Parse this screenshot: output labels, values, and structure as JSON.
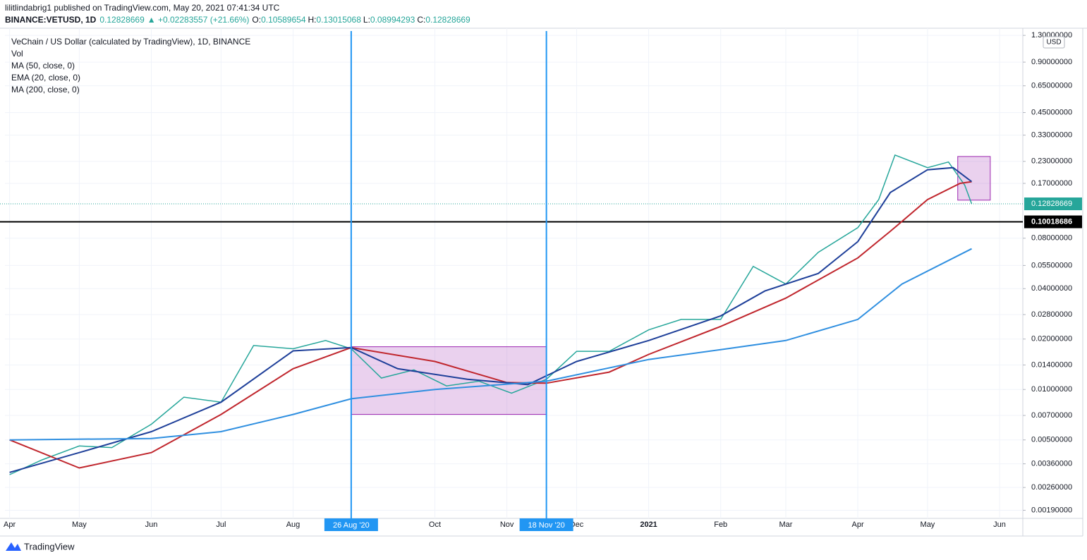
{
  "header": {
    "published": "lilitlindabrig1 published on TradingView.com, May 20, 2021 07:41:34 UTC",
    "symbol": "BINANCE:VETUSD, 1D",
    "last": "0.12828669",
    "change": "▲ +0.02283557 (+21.66%)",
    "open_label": "O:",
    "open": "0.10589654",
    "high_label": "H:",
    "high": "0.13015068",
    "low_label": "L:",
    "low": "0.08994293",
    "close_label": "C:",
    "close": "0.12828669"
  },
  "legend": {
    "vol": "Vol"
  },
  "currency": "USD",
  "footer": "TradingView",
  "chart_data": {
    "type": "line",
    "log_scale": true,
    "grid": true,
    "xlim": [
      "2020-03-30",
      "2021-06-11"
    ],
    "ylim": [
      0.0017,
      1.38
    ],
    "yticks": [
      {
        "value": 1.3,
        "label": "1.30000000"
      },
      {
        "value": 0.9,
        "label": "0.90000000"
      },
      {
        "value": 0.65,
        "label": "0.65000000"
      },
      {
        "value": 0.45,
        "label": "0.45000000"
      },
      {
        "value": 0.33,
        "label": "0.33000000"
      },
      {
        "value": 0.23,
        "label": "0.23000000"
      },
      {
        "value": 0.17,
        "label": "0.17000000"
      },
      {
        "value": 0.08,
        "label": "0.08000000"
      },
      {
        "value": 0.055,
        "label": "0.05500000"
      },
      {
        "value": 0.04,
        "label": "0.04000000"
      },
      {
        "value": 0.028,
        "label": "0.02800000"
      },
      {
        "value": 0.02,
        "label": "0.02000000"
      },
      {
        "value": 0.014,
        "label": "0.01400000"
      },
      {
        "value": 0.01,
        "label": "0.01000000"
      },
      {
        "value": 0.007,
        "label": "0.00700000"
      },
      {
        "value": 0.005,
        "label": "0.00500000"
      },
      {
        "value": 0.0036,
        "label": "0.00360000"
      },
      {
        "value": 0.0026,
        "label": "0.00260000"
      },
      {
        "value": 0.0019,
        "label": "0.00190000"
      }
    ],
    "xticks": [
      {
        "value": "2020-04-01",
        "label": "Apr"
      },
      {
        "value": "2020-05-01",
        "label": "May"
      },
      {
        "value": "2020-06-01",
        "label": "Jun"
      },
      {
        "value": "2020-07-01",
        "label": "Jul"
      },
      {
        "value": "2020-08-01",
        "label": "Aug"
      },
      {
        "value": "2020-10-01",
        "label": "Oct"
      },
      {
        "value": "2020-11-01",
        "label": "Nov"
      },
      {
        "value": "2020-12-01",
        "label": "Dec"
      },
      {
        "value": "2021-01-01",
        "label": "2021"
      },
      {
        "value": "2021-02-01",
        "label": "Feb"
      },
      {
        "value": "2021-03-01",
        "label": "Mar"
      },
      {
        "value": "2021-04-01",
        "label": "Apr"
      },
      {
        "value": "2021-05-01",
        "label": "May"
      },
      {
        "value": "2021-06-01",
        "label": "Jun"
      }
    ],
    "series": [
      {
        "name": "VeChain / US Dollar (calculated by TradingView), 1D, BINANCE",
        "color": "#26a69a",
        "x": [
          "2020-04-01",
          "2020-04-15",
          "2020-05-01",
          "2020-05-15",
          "2020-06-01",
          "2020-06-15",
          "2020-07-01",
          "2020-07-15",
          "2020-08-01",
          "2020-08-15",
          "2020-08-26",
          "2020-09-08",
          "2020-09-22",
          "2020-10-06",
          "2020-10-20",
          "2020-11-03",
          "2020-11-18",
          "2020-12-01",
          "2020-12-15",
          "2021-01-01",
          "2021-01-15",
          "2021-02-01",
          "2021-02-15",
          "2021-03-01",
          "2021-03-15",
          "2021-04-01",
          "2021-04-10",
          "2021-04-17",
          "2021-05-01",
          "2021-05-10",
          "2021-05-17",
          "2021-05-20"
        ],
        "values": [
          0.0031,
          0.0038,
          0.0046,
          0.0045,
          0.0062,
          0.009,
          0.0084,
          0.0183,
          0.0175,
          0.0196,
          0.0175,
          0.0117,
          0.0131,
          0.0105,
          0.0112,
          0.0095,
          0.0115,
          0.0169,
          0.0169,
          0.0227,
          0.0262,
          0.0262,
          0.0543,
          0.0426,
          0.0659,
          0.0925,
          0.136,
          0.251,
          0.211,
          0.228,
          0.166,
          0.12828669
        ]
      },
      {
        "name": "MA (50, close, 0)",
        "color": "#c0262d",
        "x": [
          "2020-04-01",
          "2020-05-01",
          "2020-06-01",
          "2020-07-01",
          "2020-08-01",
          "2020-08-26",
          "2020-10-01",
          "2020-11-01",
          "2020-11-18",
          "2020-12-15",
          "2021-01-01",
          "2021-02-01",
          "2021-03-01",
          "2021-04-01",
          "2021-04-15",
          "2021-05-01",
          "2021-05-15",
          "2021-05-20"
        ],
        "values": [
          0.005,
          0.0034,
          0.0042,
          0.0071,
          0.0133,
          0.0178,
          0.0147,
          0.011,
          0.0109,
          0.0127,
          0.0162,
          0.0238,
          0.0351,
          0.061,
          0.088,
          0.136,
          0.17,
          0.174
        ]
      },
      {
        "name": "EMA (20, close, 0)",
        "color": "#1e3f99",
        "x": [
          "2020-04-01",
          "2020-05-01",
          "2020-06-01",
          "2020-07-01",
          "2020-08-01",
          "2020-08-26",
          "2020-09-15",
          "2020-10-15",
          "2020-11-10",
          "2020-12-01",
          "2021-01-01",
          "2021-02-01",
          "2021-02-20",
          "2021-03-15",
          "2021-04-01",
          "2021-04-15",
          "2021-05-01",
          "2021-05-12",
          "2021-05-20"
        ],
        "values": [
          0.0032,
          0.0042,
          0.0056,
          0.0084,
          0.017,
          0.0178,
          0.0133,
          0.0115,
          0.0107,
          0.0147,
          0.0196,
          0.0275,
          0.0387,
          0.0493,
          0.0763,
          0.15,
          0.205,
          0.211,
          0.174
        ]
      },
      {
        "name": "MA (200, close, 0)",
        "color": "#2f8fe0",
        "x": [
          "2020-04-01",
          "2020-06-01",
          "2020-07-01",
          "2020-08-01",
          "2020-08-26",
          "2020-10-01",
          "2020-11-18",
          "2021-01-01",
          "2021-02-01",
          "2021-03-01",
          "2021-04-01",
          "2021-04-20",
          "2021-05-20"
        ],
        "values": [
          0.005,
          0.0051,
          0.0056,
          0.0071,
          0.0088,
          0.01,
          0.0112,
          0.0151,
          0.0173,
          0.0196,
          0.0262,
          0.0426,
          0.0692
        ]
      }
    ],
    "rectangles": [
      {
        "x": [
          "2020-08-26",
          "2020-11-18"
        ],
        "y": [
          0.0071,
          0.018
        ]
      },
      {
        "x": [
          "2021-05-14",
          "2021-05-28"
        ],
        "y": [
          0.135,
          0.246
        ]
      }
    ],
    "vlines": [
      {
        "x": "2020-08-26",
        "label": "26 Aug '20"
      },
      {
        "x": "2020-11-18",
        "label": "18 Nov '20"
      }
    ],
    "hline": {
      "value": 0.10018686,
      "label": "0.10018686"
    },
    "last_price": {
      "value": 0.12828669,
      "label": "0.12828669"
    }
  }
}
